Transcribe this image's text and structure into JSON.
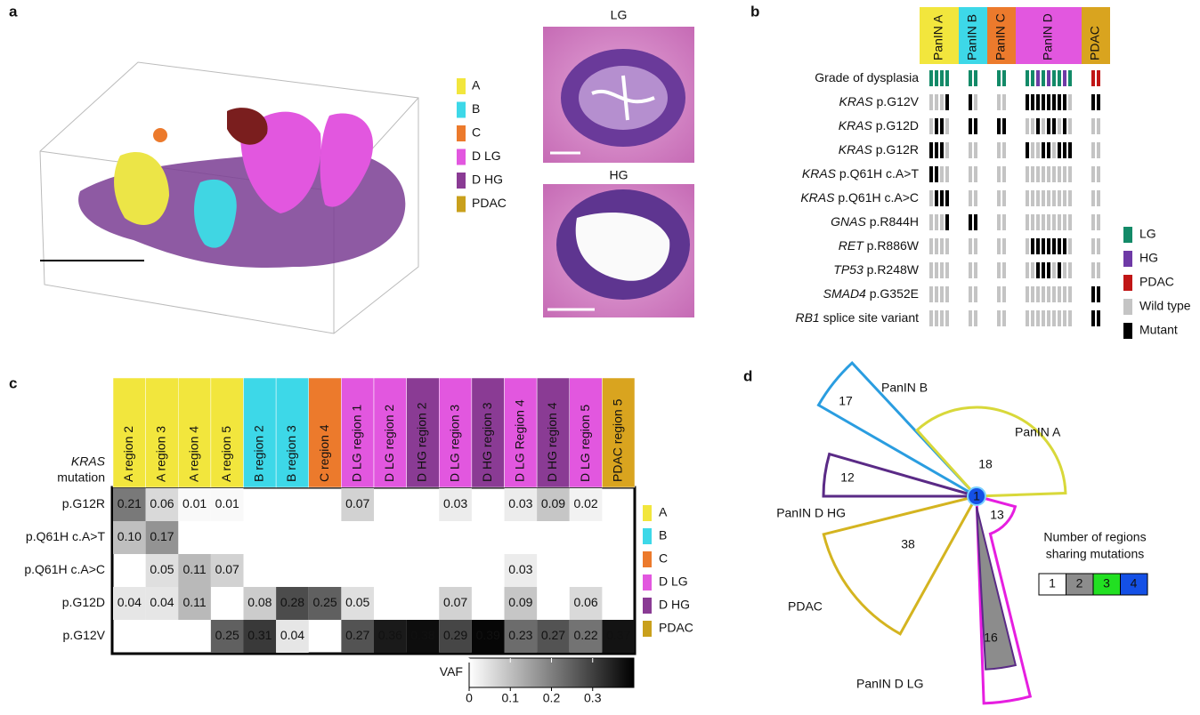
{
  "panel_a": {
    "label": "a",
    "legend": [
      {
        "name": "A",
        "color": "#f2e63d"
      },
      {
        "name": "B",
        "color": "#3dd8e8"
      },
      {
        "name": "C",
        "color": "#ec7a2c"
      },
      {
        "name": "D LG",
        "color": "#e257df"
      },
      {
        "name": "D HG",
        "color": "#8a3b94"
      },
      {
        "name": "PDAC",
        "color": "#c9a01c"
      }
    ],
    "images": [
      {
        "title": "LG"
      },
      {
        "title": "HG"
      }
    ]
  },
  "panel_b": {
    "label": "b",
    "groups": [
      {
        "name": "PanIN A",
        "color": "#f2e63d"
      },
      {
        "name": "PanIN B",
        "color": "#3dd8e8"
      },
      {
        "name": "PanIN C",
        "color": "#ec7a2c"
      },
      {
        "name": "PanIN D",
        "color": "#e257df"
      },
      {
        "name": "PDAC",
        "color": "#d9a41f"
      }
    ],
    "legend": [
      {
        "name": "LG",
        "color": "#138a68"
      },
      {
        "name": "HG",
        "color": "#6e3aa6"
      },
      {
        "name": "PDAC",
        "color": "#c01616"
      },
      {
        "name": "Wild type",
        "color": "#c4c4c4"
      },
      {
        "name": "Mutant",
        "color": "#000000"
      }
    ],
    "rows": [
      {
        "label": "Grade of dysplasia",
        "cells": [
          [
            "LG",
            "LG",
            "LG",
            "LG"
          ],
          [
            "LG",
            "LG"
          ],
          [
            "LG",
            "LG"
          ],
          [
            "LG",
            "LG",
            "HG",
            "LG",
            "HG",
            "LG",
            "LG",
            "HG",
            "LG"
          ],
          [
            "PDAC",
            "PDAC"
          ]
        ]
      },
      {
        "gene": "KRAS",
        "variant": "p.G12V",
        "cells": [
          [
            "Wild type",
            "Wild type",
            "Wild type",
            "Mutant"
          ],
          [
            "Mutant",
            "Wild type"
          ],
          [
            "Wild type",
            "Wild type"
          ],
          [
            "Mutant",
            "Mutant",
            "Mutant",
            "Mutant",
            "Mutant",
            "Mutant",
            "Mutant",
            "Mutant",
            "Wild type"
          ],
          [
            "Mutant",
            "Mutant"
          ]
        ]
      },
      {
        "gene": "KRAS",
        "variant": "p.G12D",
        "cells": [
          [
            "Wild type",
            "Mutant",
            "Mutant",
            "Wild type"
          ],
          [
            "Mutant",
            "Mutant"
          ],
          [
            "Mutant",
            "Mutant"
          ],
          [
            "Wild type",
            "Wild type",
            "Mutant",
            "Wild type",
            "Mutant",
            "Mutant",
            "Wild type",
            "Mutant",
            "Wild type"
          ],
          [
            "Wild type",
            "Wild type"
          ]
        ]
      },
      {
        "gene": "KRAS",
        "variant": "p.G12R",
        "cells": [
          [
            "Mutant",
            "Mutant",
            "Mutant",
            "Wild type"
          ],
          [
            "Wild type",
            "Wild type"
          ],
          [
            "Wild type",
            "Wild type"
          ],
          [
            "Mutant",
            "Wild type",
            "Wild type",
            "Mutant",
            "Mutant",
            "Wild type",
            "Mutant",
            "Mutant",
            "Mutant"
          ],
          [
            "Wild type",
            "Wild type"
          ]
        ]
      },
      {
        "gene": "KRAS",
        "variant": "p.Q61H c.A>T",
        "cells": [
          [
            "Mutant",
            "Mutant",
            "Wild type",
            "Wild type"
          ],
          [
            "Wild type",
            "Wild type"
          ],
          [
            "Wild type",
            "Wild type"
          ],
          [
            "Wild type",
            "Wild type",
            "Wild type",
            "Wild type",
            "Wild type",
            "Wild type",
            "Wild type",
            "Wild type",
            "Wild type"
          ],
          [
            "Wild type",
            "Wild type"
          ]
        ]
      },
      {
        "gene": "KRAS",
        "variant": "p.Q61H c.A>C",
        "cells": [
          [
            "Wild type",
            "Mutant",
            "Mutant",
            "Mutant"
          ],
          [
            "Wild type",
            "Wild type"
          ],
          [
            "Wild type",
            "Wild type"
          ],
          [
            "Wild type",
            "Wild type",
            "Wild type",
            "Wild type",
            "Wild type",
            "Wild type",
            "Wild type",
            "Wild type",
            "Wild type"
          ],
          [
            "Wild type",
            "Wild type"
          ]
        ]
      },
      {
        "gene": "GNAS",
        "variant": "p.R844H",
        "cells": [
          [
            "Wild type",
            "Wild type",
            "Wild type",
            "Mutant"
          ],
          [
            "Mutant",
            "Mutant"
          ],
          [
            "Wild type",
            "Wild type"
          ],
          [
            "Wild type",
            "Wild type",
            "Wild type",
            "Wild type",
            "Wild type",
            "Wild type",
            "Wild type",
            "Wild type",
            "Wild type"
          ],
          [
            "Wild type",
            "Wild type"
          ]
        ]
      },
      {
        "gene": "RET",
        "variant": "p.R886W",
        "cells": [
          [
            "Wild type",
            "Wild type",
            "Wild type",
            "Wild type"
          ],
          [
            "Wild type",
            "Wild type"
          ],
          [
            "Wild type",
            "Wild type"
          ],
          [
            "Wild type",
            "Mutant",
            "Mutant",
            "Mutant",
            "Mutant",
            "Mutant",
            "Mutant",
            "Mutant",
            "Wild type"
          ],
          [
            "Wild type",
            "Wild type"
          ]
        ]
      },
      {
        "gene": "TP53",
        "variant": "p.R248W",
        "cells": [
          [
            "Wild type",
            "Wild type",
            "Wild type",
            "Wild type"
          ],
          [
            "Wild type",
            "Wild type"
          ],
          [
            "Wild type",
            "Wild type"
          ],
          [
            "Wild type",
            "Wild type",
            "Mutant",
            "Mutant",
            "Mutant",
            "Wild type",
            "Mutant",
            "Wild type",
            "Wild type"
          ],
          [
            "Wild type",
            "Wild type"
          ]
        ]
      },
      {
        "gene": "SMAD4",
        "variant": "p.G352E",
        "cells": [
          [
            "Wild type",
            "Wild type",
            "Wild type",
            "Wild type"
          ],
          [
            "Wild type",
            "Wild type"
          ],
          [
            "Wild type",
            "Wild type"
          ],
          [
            "Wild type",
            "Wild type",
            "Wild type",
            "Wild type",
            "Wild type",
            "Wild type",
            "Wild type",
            "Wild type",
            "Wild type"
          ],
          [
            "Mutant",
            "Mutant"
          ]
        ]
      },
      {
        "gene": "RB1",
        "variant": "splice site variant",
        "cells": [
          [
            "Wild type",
            "Wild type",
            "Wild type",
            "Wild type"
          ],
          [
            "Wild type",
            "Wild type"
          ],
          [
            "Wild type",
            "Wild type"
          ],
          [
            "Wild type",
            "Wild type",
            "Wild type",
            "Wild type",
            "Wild type",
            "Wild type",
            "Wild type",
            "Wild type",
            "Wild type"
          ],
          [
            "Mutant",
            "Mutant"
          ]
        ]
      }
    ]
  },
  "panel_c": {
    "label": "c",
    "header": {
      "gene": "KRAS",
      "word": "mutation"
    },
    "columns": [
      {
        "name": "A region 2",
        "color": "#f2e63d"
      },
      {
        "name": "A region 3",
        "color": "#f2e63d"
      },
      {
        "name": "A region 4",
        "color": "#f2e63d"
      },
      {
        "name": "A region 5",
        "color": "#f2e63d"
      },
      {
        "name": "B region 2",
        "color": "#3dd8e8"
      },
      {
        "name": "B region 3",
        "color": "#3dd8e8"
      },
      {
        "name": "C region 4",
        "color": "#ec7a2c"
      },
      {
        "name": "D LG region 1",
        "color": "#e257df"
      },
      {
        "name": "D LG region 2",
        "color": "#e257df"
      },
      {
        "name": "D HG region 2",
        "color": "#8a3b94"
      },
      {
        "name": "D LG region 3",
        "color": "#e257df"
      },
      {
        "name": "D HG region 3",
        "color": "#8a3b94"
      },
      {
        "name": "D LG Region 4",
        "color": "#e257df"
      },
      {
        "name": "D HG region 4",
        "color": "#8a3b94"
      },
      {
        "name": "D LG region 5",
        "color": "#e257df"
      },
      {
        "name": "PDAC region 5",
        "color": "#d9a41f"
      }
    ],
    "rows": [
      {
        "name": "p.G12R",
        "values": [
          0.21,
          0.06,
          0.01,
          0.01,
          null,
          null,
          null,
          0.07,
          null,
          null,
          0.03,
          null,
          0.03,
          0.09,
          0.02,
          null
        ],
        "value_labels": [
          "0.21",
          "0.06",
          "0.01",
          "0.01",
          null,
          null,
          null,
          "0.07",
          null,
          null,
          "0.03",
          null,
          "0.03",
          "0.09",
          "0.02",
          null
        ]
      },
      {
        "name": "p.Q61H c.A>T",
        "values": [
          0.1,
          0.17,
          null,
          null,
          null,
          null,
          null,
          null,
          null,
          null,
          null,
          null,
          null,
          null,
          null,
          null
        ],
        "value_labels": [
          "0.10",
          "0.17",
          null,
          null,
          null,
          null,
          null,
          null,
          null,
          null,
          null,
          null,
          null,
          null,
          null,
          null
        ]
      },
      {
        "name": "p.Q61H c.A>C",
        "values": [
          null,
          0.05,
          0.11,
          0.07,
          null,
          null,
          null,
          null,
          null,
          null,
          null,
          null,
          0.03,
          null,
          null,
          null
        ],
        "value_labels": [
          null,
          "0.05",
          "0.11",
          "0.07",
          null,
          null,
          null,
          null,
          null,
          null,
          null,
          null,
          "0.03",
          null,
          null,
          null
        ]
      },
      {
        "name": "p.G12D",
        "values": [
          0.04,
          0.04,
          0.11,
          null,
          0.08,
          0.28,
          0.25,
          0.05,
          null,
          null,
          0.07,
          null,
          0.09,
          null,
          0.06,
          null
        ],
        "value_labels": [
          "0.04",
          "0.04",
          "0.11",
          null,
          "0.08",
          "0.28",
          "0.25",
          "0.05",
          null,
          null,
          "0.07",
          null,
          "0.09",
          null,
          "0.06",
          null
        ]
      },
      {
        "name": "p.G12V",
        "values": [
          null,
          null,
          null,
          0.25,
          0.31,
          0.04,
          null,
          0.27,
          0.36,
          0.38,
          0.29,
          0.39,
          0.23,
          0.27,
          0.22,
          0.37
        ],
        "value_labels": [
          null,
          null,
          null,
          "0.25",
          "0.31",
          "0.04",
          null,
          "0.27",
          "0.36",
          "0.38",
          "0.29",
          "0.39",
          "0.23",
          "0.27",
          "0.22",
          "0.37"
        ]
      }
    ],
    "legend": [
      {
        "name": "A",
        "color": "#f2e63d"
      },
      {
        "name": "B",
        "color": "#3dd8e8"
      },
      {
        "name": "C",
        "color": "#ec7a2c"
      },
      {
        "name": "D LG",
        "color": "#e257df"
      },
      {
        "name": "D HG",
        "color": "#8a3b94"
      },
      {
        "name": "PDAC",
        "color": "#c9a01c"
      }
    ],
    "colorbar": {
      "label": "VAF",
      "range": [
        0,
        0.4
      ],
      "ticks": [
        0,
        0.1,
        0.2,
        0.3
      ]
    }
  },
  "panel_d": {
    "label": "d",
    "wedges": [
      {
        "name": "PanIN B",
        "count": 17,
        "color": "#2a9de0"
      },
      {
        "name": "PanIN A",
        "count": 18,
        "color": "#d8d83a"
      },
      {
        "name": "PanIN D HG",
        "count": 12,
        "color": "#5a2a86"
      },
      {
        "name": "PDAC",
        "count": 38,
        "color": "#d4b420"
      },
      {
        "name": "PanIN D LG",
        "count": 13,
        "color": "#e61ee0"
      }
    ],
    "shared": {
      "count": 16,
      "color": "#8c8c8c"
    },
    "center": {
      "count": 1,
      "color": "#1450e6"
    },
    "legend": {
      "title": [
        "Number of regions",
        "sharing mutations"
      ],
      "items": [
        {
          "value": 1,
          "color": "#ffffff"
        },
        {
          "value": 2,
          "color": "#8c8c8c"
        },
        {
          "value": 3,
          "color": "#22e022"
        },
        {
          "value": 4,
          "color": "#1450e6"
        }
      ]
    }
  }
}
